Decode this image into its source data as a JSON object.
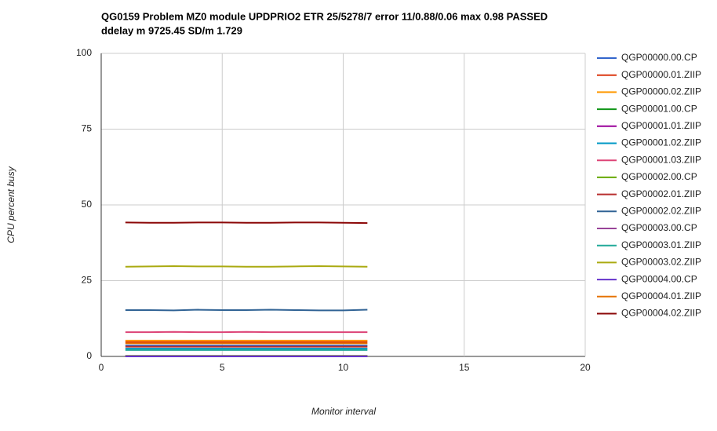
{
  "chart_data": {
    "type": "line",
    "title": [
      "QG0159 Problem MZ0 module UPDPRIO2 ETR 25/5278/7 error 11/0.88/0.06 max 0.98 PASSED",
      "ddelay m 9725.45 SD/m 1.729"
    ],
    "x_label": "Monitor interval",
    "y_label": "CPU percent busy",
    "x": [
      1,
      2,
      3,
      4,
      5,
      6,
      7,
      8,
      9,
      10,
      11
    ],
    "xlim": [
      0,
      20
    ],
    "xticks": [
      0,
      5,
      10,
      15,
      20
    ],
    "ylim": [
      0,
      100
    ],
    "yticks": [
      0,
      25,
      50,
      75,
      100
    ],
    "grid": true,
    "legend": "right",
    "series": [
      {
        "name": "QGP00000.00.CP",
        "color": "#3366cc",
        "values": [
          3.6,
          3.6,
          3.6,
          3.6,
          3.6,
          3.6,
          3.6,
          3.6,
          3.6,
          3.6,
          3.6
        ]
      },
      {
        "name": "QGP00000.01.ZIIP",
        "color": "#dc3912",
        "values": [
          4.8,
          4.8,
          4.8,
          4.8,
          4.8,
          4.8,
          4.8,
          4.8,
          4.8,
          4.8,
          4.8
        ]
      },
      {
        "name": "QGP00000.02.ZIIP",
        "color": "#ff9900",
        "values": [
          5.2,
          5.2,
          5.2,
          5.2,
          5.2,
          5.2,
          5.2,
          5.2,
          5.2,
          5.2,
          5.2
        ]
      },
      {
        "name": "QGP00001.00.CP",
        "color": "#109618",
        "values": [
          0.1,
          0.1,
          0.1,
          0.1,
          0.1,
          0.1,
          0.1,
          0.1,
          0.1,
          0.1,
          0.1
        ]
      },
      {
        "name": "QGP00001.01.ZIIP",
        "color": "#990099",
        "values": [
          0.1,
          0.1,
          0.1,
          0.1,
          0.1,
          0.1,
          0.1,
          0.1,
          0.1,
          0.1,
          0.1
        ]
      },
      {
        "name": "QGP00001.02.ZIIP",
        "color": "#0099c6",
        "values": [
          2.6,
          2.6,
          2.6,
          2.6,
          2.6,
          2.6,
          2.6,
          2.6,
          2.6,
          2.6,
          2.6
        ]
      },
      {
        "name": "QGP00001.03.ZIIP",
        "color": "#dd4477",
        "values": [
          8.0,
          8.0,
          8.1,
          8.0,
          8.0,
          8.1,
          8.0,
          8.0,
          8.0,
          8.0,
          8.0
        ]
      },
      {
        "name": "QGP00002.00.CP",
        "color": "#66aa00",
        "values": [
          0.2,
          0.2,
          0.2,
          0.2,
          0.2,
          0.2,
          0.2,
          0.2,
          0.2,
          0.2,
          0.2
        ]
      },
      {
        "name": "QGP00002.01.ZIIP",
        "color": "#b82e2e",
        "values": [
          3.2,
          3.2,
          3.2,
          3.2,
          3.2,
          3.2,
          3.2,
          3.2,
          3.2,
          3.2,
          3.2
        ]
      },
      {
        "name": "QGP00002.02.ZIIP",
        "color": "#316395",
        "values": [
          15.3,
          15.3,
          15.2,
          15.4,
          15.3,
          15.3,
          15.4,
          15.3,
          15.2,
          15.2,
          15.4
        ]
      },
      {
        "name": "QGP00003.00.CP",
        "color": "#994499",
        "values": [
          0.1,
          0.1,
          0.1,
          0.1,
          0.1,
          0.1,
          0.1,
          0.1,
          0.1,
          0.1,
          0.1
        ]
      },
      {
        "name": "QGP00003.01.ZIIP",
        "color": "#22aa99",
        "values": [
          2.1,
          2.1,
          2.1,
          2.1,
          2.1,
          2.1,
          2.1,
          2.1,
          2.1,
          2.1,
          2.1
        ]
      },
      {
        "name": "QGP00003.02.ZIIP",
        "color": "#aaaa11",
        "values": [
          29.6,
          29.7,
          29.8,
          29.7,
          29.7,
          29.6,
          29.6,
          29.7,
          29.8,
          29.7,
          29.6
        ]
      },
      {
        "name": "QGP00004.00.CP",
        "color": "#6633cc",
        "values": [
          0,
          0,
          0,
          0,
          0,
          0,
          0,
          0,
          0,
          0,
          0
        ]
      },
      {
        "name": "QGP00004.01.ZIIP",
        "color": "#e67300",
        "values": [
          4.3,
          4.3,
          4.3,
          4.3,
          4.3,
          4.3,
          4.3,
          4.3,
          4.3,
          4.3,
          4.3
        ]
      },
      {
        "name": "QGP00004.02.ZIIP",
        "color": "#8b0707",
        "values": [
          44.2,
          44.1,
          44.1,
          44.2,
          44.2,
          44.1,
          44.1,
          44.2,
          44.2,
          44.1,
          44.0
        ]
      }
    ]
  }
}
